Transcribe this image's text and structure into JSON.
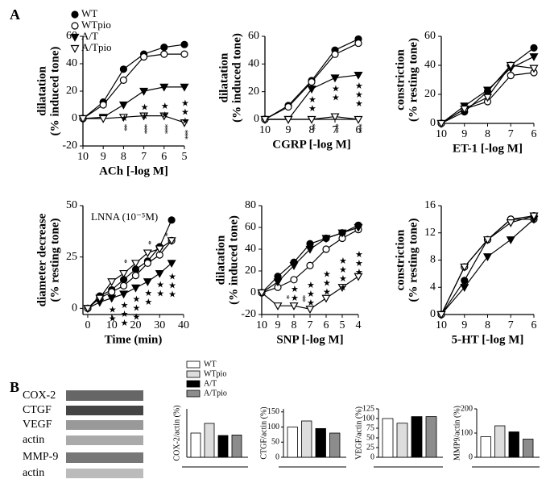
{
  "panel_labels": [
    "A",
    "B"
  ],
  "blot_labels": [
    "COX-2",
    "CTGF",
    "VEGF",
    "actin",
    "MMP-9",
    "actin"
  ],
  "bar_legend": [
    {
      "name": "WT",
      "color": "#ffffff"
    },
    {
      "name": "WTpio",
      "color": "#dddddd"
    },
    {
      "name": "A/T",
      "color": "#000000"
    },
    {
      "name": "A/Tpio",
      "color": "#8c8c8c"
    }
  ],
  "chart_data": [
    {
      "type": "line",
      "xlabel": "ACh [-log M]",
      "ylabel": [
        "dilatation",
        "(% induced tone)"
      ],
      "xlim": [
        10,
        5
      ],
      "xticks": [
        10,
        9,
        8,
        7,
        6,
        5
      ],
      "ylim": [
        -20,
        60
      ],
      "yticks": [
        -20,
        0,
        20,
        40,
        60
      ],
      "legend": "upper left",
      "x": [
        10,
        9,
        8,
        7,
        6,
        5
      ],
      "series": [
        {
          "name": "WT",
          "marker": "circle",
          "filled": true,
          "color": "#000000",
          "values": [
            0,
            12,
            36,
            47,
            52,
            54
          ]
        },
        {
          "name": "WTpio",
          "marker": "circle",
          "filled": false,
          "color": "#000000",
          "values": [
            0,
            10,
            28,
            45,
            47,
            47
          ]
        },
        {
          "name": "A/T",
          "marker": "triangle-down",
          "filled": true,
          "color": "#000000",
          "values": [
            0,
            1,
            10,
            20,
            23,
            23
          ]
        },
        {
          "name": "A/Tpio",
          "marker": "triangle-down",
          "filled": false,
          "color": "#000000",
          "values": [
            0,
            0,
            1,
            2,
            2,
            -3
          ]
        }
      ],
      "annotations": [
        {
          "x": 8,
          "y": 4,
          "text": "★"
        },
        {
          "x": 7,
          "y": 12,
          "text": "★★"
        },
        {
          "x": 6,
          "y": 13,
          "text": "★★"
        },
        {
          "x": 5,
          "y": 15,
          "text": "★★★"
        },
        {
          "x": 8,
          "y": -4,
          "text": "**"
        },
        {
          "x": 7,
          "y": -4,
          "text": "***"
        },
        {
          "x": 6,
          "y": -4,
          "text": "***"
        },
        {
          "x": 5,
          "y": -8,
          "text": "***"
        }
      ]
    },
    {
      "type": "line",
      "xlabel": "CGRP [-log M]",
      "ylabel": [
        "dilatation",
        "(% induced tone)"
      ],
      "xlim": [
        10,
        6
      ],
      "xticks": [
        10,
        9,
        8,
        7,
        6
      ],
      "ylim": [
        0,
        60
      ],
      "yticks": [
        0,
        20,
        40,
        60
      ],
      "x": [
        10,
        9,
        8,
        7,
        6
      ],
      "series": [
        {
          "marker": "circle",
          "filled": true,
          "color": "#000000",
          "values": [
            0,
            10,
            28,
            50,
            58
          ]
        },
        {
          "marker": "circle",
          "filled": false,
          "color": "#000000",
          "values": [
            0,
            9,
            27,
            47,
            55
          ]
        },
        {
          "marker": "triangle-down",
          "filled": true,
          "color": "#000000",
          "values": [
            0,
            0,
            22,
            30,
            32
          ]
        },
        {
          "marker": "triangle-down",
          "filled": false,
          "color": "#000000",
          "values": [
            0,
            0,
            0,
            2,
            0
          ]
        }
      ],
      "annotations": [
        {
          "x": 8,
          "y": 18,
          "text": "★★"
        },
        {
          "x": 7,
          "y": 26,
          "text": "★★"
        },
        {
          "x": 6,
          "y": 28,
          "text": "★★★"
        },
        {
          "x": 8,
          "y": -3,
          "text": "**"
        },
        {
          "x": 7,
          "y": -3,
          "text": "***"
        },
        {
          "x": 6,
          "y": -3,
          "text": "***"
        }
      ]
    },
    {
      "type": "line",
      "xlabel": "ET-1 [-log M]",
      "ylabel": [
        "constriction",
        "(% resting tone)"
      ],
      "xlim": [
        10,
        6
      ],
      "xticks": [
        10,
        9,
        8,
        7,
        6
      ],
      "ylim": [
        0,
        60
      ],
      "yticks": [
        0,
        20,
        40,
        60
      ],
      "x": [
        10,
        9,
        8,
        7,
        6
      ],
      "series": [
        {
          "marker": "circle",
          "filled": true,
          "color": "#000000",
          "values": [
            0,
            8,
            22,
            40,
            52
          ]
        },
        {
          "marker": "circle",
          "filled": false,
          "color": "#000000",
          "values": [
            0,
            10,
            15,
            33,
            35
          ]
        },
        {
          "marker": "triangle-down",
          "filled": true,
          "color": "#000000",
          "values": [
            0,
            12,
            23,
            38,
            46
          ]
        },
        {
          "marker": "triangle-down",
          "filled": false,
          "color": "#000000",
          "values": [
            0,
            10,
            18,
            40,
            38
          ]
        }
      ]
    },
    {
      "type": "line",
      "xlabel": "Time (min)",
      "ylabel": [
        "diameter decrease",
        "(% resting tone)"
      ],
      "annotation_text": "LNNA (10⁻⁵M)",
      "xlim": [
        -2,
        40
      ],
      "xticks": [
        0,
        10,
        20,
        30,
        40
      ],
      "ylim": [
        -3,
        50
      ],
      "yticks": [
        0,
        25,
        50
      ],
      "x": [
        0,
        5,
        10,
        15,
        20,
        25,
        30,
        35
      ],
      "series": [
        {
          "marker": "circle",
          "filled": true,
          "color": "#000000",
          "values": [
            0,
            6,
            9,
            14,
            19,
            23,
            30,
            43
          ]
        },
        {
          "marker": "circle",
          "filled": false,
          "color": "#000000",
          "values": [
            0,
            5,
            8,
            11,
            16,
            22,
            26,
            33
          ]
        },
        {
          "marker": "triangle-down",
          "filled": true,
          "color": "#000000",
          "values": [
            0,
            3,
            5,
            7,
            10,
            13,
            17,
            22
          ]
        },
        {
          "marker": "triangle-down",
          "filled": false,
          "color": "#000000",
          "values": [
            0,
            5,
            13,
            17,
            22,
            27,
            29,
            33
          ]
        }
      ],
      "annotations": [
        {
          "x": 10,
          "y": 2,
          "text": "★★"
        },
        {
          "x": 15,
          "y": 4,
          "text": "★★★"
        },
        {
          "x": 20,
          "y": 7,
          "text": "★★★"
        },
        {
          "x": 25,
          "y": 10,
          "text": "★★"
        },
        {
          "x": 30,
          "y": 14,
          "text": "★★"
        },
        {
          "x": 35,
          "y": 18,
          "text": "★★★"
        },
        {
          "x": 15,
          "y": 24,
          "text": "*"
        },
        {
          "x": 25,
          "y": 33,
          "text": "*"
        },
        {
          "x": 32,
          "y": 37,
          "text": "*"
        }
      ]
    },
    {
      "type": "line",
      "xlabel": "SNP [-log M]",
      "ylabel": [
        "dilatation",
        "(% induced tone)"
      ],
      "xlim": [
        10,
        4
      ],
      "xticks": [
        10,
        9,
        8,
        7,
        6,
        5,
        4
      ],
      "ylim": [
        -20,
        80
      ],
      "yticks": [
        -20,
        0,
        20,
        40,
        60,
        80
      ],
      "x": [
        10,
        9,
        8,
        7,
        6,
        5,
        4
      ],
      "series": [
        {
          "marker": "circle",
          "filled": true,
          "color": "#000000",
          "values": [
            0,
            15,
            28,
            45,
            50,
            55,
            62
          ]
        },
        {
          "marker": "circle",
          "filled": false,
          "color": "#000000",
          "values": [
            0,
            5,
            12,
            25,
            40,
            50,
            58
          ]
        },
        {
          "marker": "triangle-down",
          "filled": true,
          "color": "#000000",
          "values": [
            0,
            10,
            25,
            40,
            50,
            55,
            60
          ]
        },
        {
          "marker": "triangle-down",
          "filled": false,
          "color": "#000000",
          "values": [
            0,
            -12,
            -12,
            -15,
            -5,
            5,
            15
          ]
        }
      ],
      "annotations": [
        {
          "x": 8,
          "y": 8,
          "text": "★★"
        },
        {
          "x": 7,
          "y": 12,
          "text": "★★★"
        },
        {
          "x": 6,
          "y": 22,
          "text": "★★★"
        },
        {
          "x": 5,
          "y": 34,
          "text": "★★★★"
        },
        {
          "x": 4,
          "y": 40,
          "text": "★★★"
        },
        {
          "x": 8.5,
          "y": -2,
          "text": "*"
        },
        {
          "x": 7.5,
          "y": -2,
          "text": "**"
        }
      ]
    },
    {
      "type": "line",
      "xlabel": "5-HT [-log M]",
      "ylabel": [
        "constriction",
        "(% resting tone)"
      ],
      "xlim": [
        10,
        6
      ],
      "xticks": [
        10,
        9,
        8,
        7,
        6
      ],
      "ylim": [
        0,
        16
      ],
      "yticks": [
        0,
        4,
        8,
        12,
        16
      ],
      "x": [
        10,
        9,
        8,
        7,
        6
      ],
      "series": [
        {
          "marker": "circle",
          "filled": true,
          "color": "#000000",
          "values": [
            0,
            5,
            11,
            14,
            14.5
          ]
        },
        {
          "marker": "circle",
          "filled": false,
          "color": "#000000",
          "values": [
            0,
            7,
            11,
            14,
            14
          ]
        },
        {
          "marker": "triangle-down",
          "filled": true,
          "color": "#000000",
          "values": [
            0,
            4,
            8.5,
            11,
            14
          ]
        },
        {
          "marker": "triangle-down",
          "filled": false,
          "color": "#000000",
          "values": [
            0,
            7,
            11,
            13.5,
            14.5
          ]
        }
      ]
    },
    {
      "type": "bar",
      "ylabel": "COX-2/actin (%)",
      "ylim": [
        0,
        200
      ],
      "values": [
        100,
        140,
        90,
        92
      ],
      "colors": [
        "#ffffff",
        "#dddddd",
        "#000000",
        "#8c8c8c"
      ]
    },
    {
      "type": "bar",
      "ylabel": "CTGF/actin (%)",
      "ylim": [
        0,
        160
      ],
      "yticks": [
        0,
        50,
        100,
        150
      ],
      "values": [
        100,
        120,
        95,
        80
      ],
      "colors": [
        "#ffffff",
        "#dddddd",
        "#000000",
        "#8c8c8c"
      ]
    },
    {
      "type": "bar",
      "ylabel": "VEGF/actin (%)",
      "ylim": [
        0,
        125
      ],
      "yticks": [
        0,
        25,
        50,
        75,
        100,
        125
      ],
      "values": [
        100,
        88,
        105,
        105
      ],
      "colors": [
        "#ffffff",
        "#dddddd",
        "#000000",
        "#8c8c8c"
      ]
    },
    {
      "type": "bar",
      "ylabel": "MMP9/actin (%)",
      "ylim": [
        0,
        200
      ],
      "yticks": [
        0,
        100,
        200
      ],
      "values": [
        85,
        130,
        105,
        75
      ],
      "colors": [
        "#ffffff",
        "#dddddd",
        "#000000",
        "#8c8c8c"
      ]
    }
  ]
}
